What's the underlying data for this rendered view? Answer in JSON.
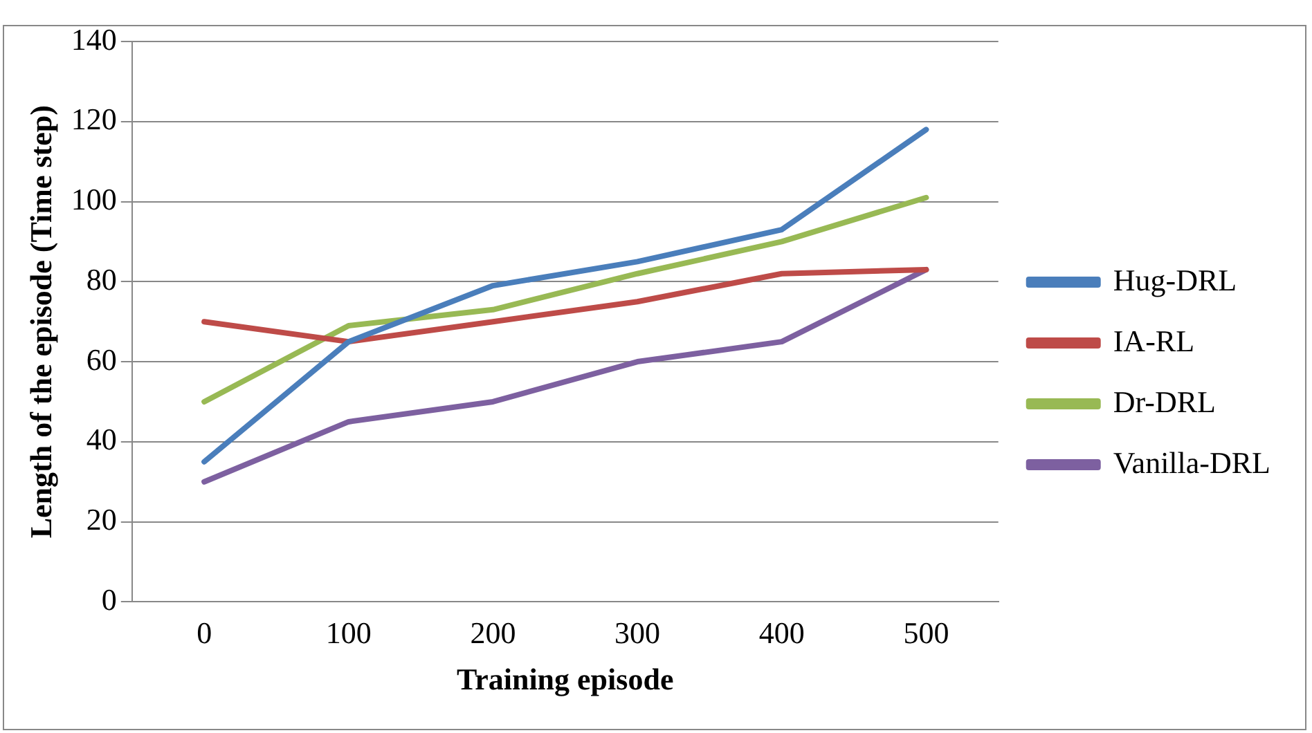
{
  "chart_data": {
    "type": "line",
    "xlabel": "Training episode",
    "ylabel": "Length of the episode (Time step)",
    "categories": [
      "0",
      "100",
      "200",
      "300",
      "400",
      "500"
    ],
    "series": [
      {
        "name": "Hug-DRL",
        "color": "#4a7ebb",
        "values": [
          35,
          65,
          79,
          85,
          93,
          118
        ]
      },
      {
        "name": "IA-RL",
        "color": "#be4b48",
        "values": [
          70,
          65,
          70,
          75,
          82,
          83
        ]
      },
      {
        "name": "Dr-DRL",
        "color": "#98b954",
        "values": [
          50,
          69,
          73,
          82,
          90,
          101
        ]
      },
      {
        "name": "Vanilla-DRL",
        "color": "#7d60a0",
        "values": [
          30,
          45,
          50,
          60,
          65,
          83
        ]
      }
    ],
    "ylim": [
      0,
      140
    ],
    "yticks": [
      0,
      20,
      40,
      60,
      80,
      100,
      120,
      140
    ],
    "grid": "y",
    "legend": "right",
    "marker": "none",
    "line_style": "solid"
  }
}
